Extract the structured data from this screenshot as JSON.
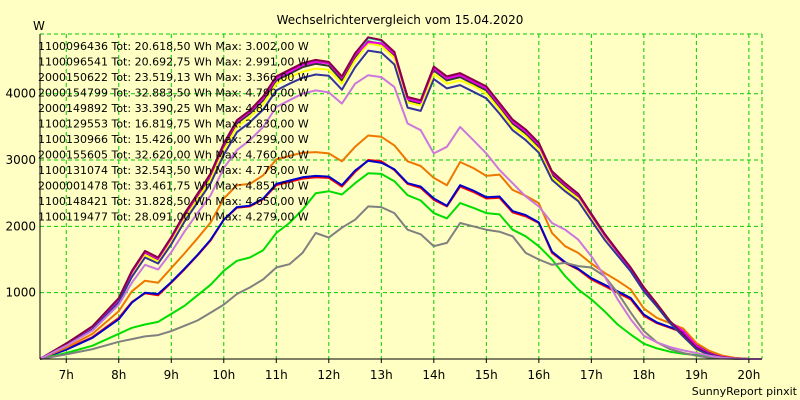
{
  "chart_data": {
    "type": "line",
    "title": "Wechselrichtervergleich vom 15.04.2020",
    "ylabel": "W",
    "footer": "SunnyReport pinxit",
    "ylim": [
      0,
      4900
    ],
    "yticks": [
      1000,
      2000,
      3000,
      4000
    ],
    "xlim": [
      6.5,
      20.25
    ],
    "x_ticks": [
      7,
      8,
      9,
      10,
      11,
      12,
      13,
      14,
      15,
      16,
      17,
      18,
      19,
      20
    ],
    "x_tick_labels": [
      "7h",
      "8h",
      "9h",
      "10h",
      "11h",
      "12h",
      "13h",
      "14h",
      "15h",
      "16h",
      "17h",
      "18h",
      "19h",
      "20h"
    ],
    "grid": true,
    "colors": {
      "background": "#ffffc4",
      "grid": "#00cc00"
    },
    "legend": [
      {
        "text": "1100096436 Tot: 20.618,50 Wh Max: 3.002,00 W",
        "color": "#ff0000"
      },
      {
        "text": "1100096541 Tot: 20.692,75 Wh Max: 2.991,00 W",
        "color": "#0000cc"
      },
      {
        "text": "2000150622 Tot: 23.519,13 Wh Max: 3.366,00 W",
        "color": "#ee7700"
      },
      {
        "text": "2000154799 Tot: 32.883,50 Wh Max: 4.790,00 W",
        "color": "#333333"
      },
      {
        "text": "2000149892 Tot: 33.390,25 Wh Max: 4.840,00 W",
        "color": "#00dddd"
      },
      {
        "text": "1100129553 Tot: 16.819,75 Wh Max: 2.830,00 W",
        "color": "#00dd00"
      },
      {
        "text": "1100130966 Tot: 15.426,00 Wh Max: 2.299,00 W",
        "color": "#808080"
      },
      {
        "text": "2000155605 Tot: 32.620,00 Wh Max: 4.760,00 W",
        "color": "#ffff00"
      },
      {
        "text": "1100131074 Tot: 32.543,50 Wh Max: 4.778,00 W",
        "color": "#ee00ee"
      },
      {
        "text": "2000001478 Tot: 33.461,75 Wh Max: 4.851,00 W",
        "color": "#880044"
      },
      {
        "text": "1100148421 Tot: 31.828,50 Wh Max: 4.650,00 W",
        "color": "#333399"
      },
      {
        "text": "1100119477 Tot: 28.091,00 Wh Max: 4.279,00 W",
        "color": "#cc77dd"
      }
    ],
    "x": [
      6.5,
      7,
      7.5,
      8,
      8.25,
      8.5,
      8.75,
      9,
      9.25,
      9.5,
      9.75,
      10,
      10.25,
      10.5,
      10.75,
      11,
      11.25,
      11.5,
      11.75,
      12,
      12.25,
      12.5,
      12.75,
      13,
      13.25,
      13.5,
      13.75,
      14,
      14.25,
      14.5,
      14.75,
      15,
      15.25,
      15.5,
      15.75,
      16,
      16.25,
      16.5,
      16.75,
      17,
      17.25,
      17.5,
      17.75,
      18,
      18.25,
      18.5,
      18.75,
      19,
      19.25,
      19.5,
      19.75,
      20,
      20.25
    ],
    "series": [
      {
        "name": "1100096436",
        "color": "#ff0000",
        "values": [
          0,
          150,
          330,
          620,
          860,
          990,
          960,
          1150,
          1350,
          1560,
          1790,
          2100,
          2280,
          2300,
          2410,
          2620,
          2670,
          2720,
          2740,
          2730,
          2600,
          2820,
          3000,
          2980,
          2850,
          2640,
          2580,
          2400,
          2300,
          2600,
          2520,
          2420,
          2430,
          2210,
          2150,
          2050,
          1600,
          1450,
          1350,
          1200,
          1100,
          1000,
          900,
          650,
          540,
          470,
          400,
          200,
          100,
          40,
          10,
          0,
          0
        ]
      },
      {
        "name": "1100096541",
        "color": "#0000cc",
        "values": [
          0,
          140,
          320,
          600,
          850,
          1000,
          980,
          1160,
          1360,
          1570,
          1800,
          2100,
          2290,
          2310,
          2420,
          2640,
          2690,
          2740,
          2760,
          2750,
          2620,
          2840,
          2990,
          2960,
          2860,
          2650,
          2600,
          2420,
          2310,
          2620,
          2540,
          2440,
          2450,
          2230,
          2170,
          2060,
          1620,
          1460,
          1360,
          1220,
          1120,
          1020,
          920,
          670,
          550,
          480,
          410,
          210,
          110,
          45,
          12,
          0,
          0
        ]
      },
      {
        "name": "2000150622",
        "color": "#ee7700",
        "values": [
          0,
          170,
          380,
          720,
          1020,
          1180,
          1150,
          1370,
          1590,
          1820,
          2060,
          2420,
          2620,
          2640,
          2770,
          3010,
          3060,
          3110,
          3120,
          3100,
          2980,
          3200,
          3370,
          3350,
          3220,
          2980,
          2910,
          2730,
          2620,
          2970,
          2880,
          2760,
          2780,
          2550,
          2460,
          2350,
          1900,
          1700,
          1600,
          1440,
          1300,
          1180,
          1050,
          760,
          620,
          540,
          460,
          240,
          120,
          50,
          15,
          0,
          0
        ]
      },
      {
        "name": "2000154799",
        "color": "#333333",
        "values": [
          0,
          220,
          480,
          900,
          1300,
          1600,
          1500,
          1800,
          2150,
          2450,
          2750,
          3200,
          3550,
          3700,
          3900,
          4200,
          4300,
          4400,
          4450,
          4420,
          4200,
          4550,
          4790,
          4750,
          4580,
          3900,
          3850,
          4350,
          4200,
          4250,
          4150,
          4050,
          3800,
          3550,
          3400,
          3200,
          2780,
          2600,
          2450,
          2150,
          1850,
          1600,
          1350,
          1050,
          800,
          550,
          350,
          150,
          60,
          20,
          5,
          0,
          0
        ]
      },
      {
        "name": "2000149892",
        "color": "#00dddd",
        "values": [
          0,
          230,
          490,
          910,
          1320,
          1620,
          1520,
          1830,
          2180,
          2480,
          2790,
          3240,
          3590,
          3740,
          3950,
          4250,
          4350,
          4450,
          4500,
          4470,
          4250,
          4600,
          4840,
          4800,
          4620,
          3940,
          3890,
          4400,
          4250,
          4300,
          4200,
          4100,
          3850,
          3600,
          3450,
          3250,
          2820,
          2640,
          2480,
          2180,
          1880,
          1620,
          1370,
          1070,
          820,
          560,
          360,
          160,
          65,
          22,
          6,
          0,
          0
        ]
      },
      {
        "name": "1100129553",
        "color": "#00dd00",
        "values": [
          0,
          90,
          200,
          380,
          470,
          520,
          560,
          680,
          800,
          960,
          1120,
          1330,
          1480,
          1530,
          1640,
          1900,
          2050,
          2250,
          2500,
          2530,
          2480,
          2650,
          2800,
          2790,
          2680,
          2470,
          2390,
          2200,
          2120,
          2350,
          2280,
          2200,
          2180,
          1950,
          1850,
          1700,
          1500,
          1250,
          1050,
          900,
          720,
          520,
          370,
          230,
          160,
          110,
          80,
          60,
          40,
          20,
          8,
          0,
          0
        ]
      },
      {
        "name": "1100130966",
        "color": "#808080",
        "values": [
          0,
          70,
          150,
          260,
          300,
          340,
          360,
          420,
          500,
          580,
          700,
          820,
          980,
          1080,
          1200,
          1380,
          1430,
          1600,
          1900,
          1830,
          1980,
          2100,
          2300,
          2290,
          2200,
          1950,
          1880,
          1700,
          1750,
          2050,
          2000,
          1950,
          1920,
          1850,
          1600,
          1500,
          1420,
          1450,
          1400,
          1380,
          1250,
          1000,
          700,
          420,
          250,
          150,
          90,
          50,
          20,
          8,
          2,
          0,
          0
        ]
      },
      {
        "name": "2000155605",
        "color": "#ffff00",
        "values": [
          0,
          215,
          470,
          880,
          1270,
          1570,
          1470,
          1770,
          2110,
          2410,
          2710,
          3150,
          3500,
          3650,
          3840,
          4150,
          4250,
          4330,
          4380,
          4360,
          4150,
          4500,
          4760,
          4720,
          4540,
          3870,
          3820,
          4300,
          4150,
          4200,
          4120,
          4000,
          3760,
          3500,
          3360,
          3160,
          2740,
          2570,
          2420,
          2120,
          1820,
          1580,
          1330,
          1030,
          790,
          540,
          340,
          140,
          55,
          18,
          4,
          0,
          0
        ]
      },
      {
        "name": "1100131074",
        "color": "#ee00ee",
        "values": [
          0,
          225,
          485,
          905,
          1310,
          1610,
          1510,
          1820,
          2170,
          2470,
          2780,
          3230,
          3580,
          3730,
          3930,
          4230,
          4330,
          4430,
          4480,
          4460,
          4240,
          4580,
          4778,
          4760,
          4600,
          3920,
          3870,
          4380,
          4230,
          4280,
          4180,
          4080,
          3830,
          3580,
          3430,
          3230,
          2810,
          2630,
          2470,
          2170,
          1870,
          1610,
          1360,
          1060,
          810,
          560,
          420,
          200,
          80,
          30,
          8,
          0,
          0
        ]
      },
      {
        "name": "2000001478",
        "color": "#880044",
        "values": [
          0,
          235,
          495,
          920,
          1330,
          1630,
          1530,
          1840,
          2190,
          2490,
          2800,
          3250,
          3600,
          3750,
          3960,
          4260,
          4360,
          4460,
          4510,
          4480,
          4260,
          4610,
          4851,
          4810,
          4630,
          3950,
          3900,
          4410,
          4260,
          4310,
          4210,
          4110,
          3860,
          3610,
          3460,
          3260,
          2830,
          2650,
          2490,
          2190,
          1890,
          1630,
          1380,
          1080,
          830,
          570,
          370,
          170,
          70,
          25,
          6,
          0,
          0
        ]
      },
      {
        "name": "1100148421",
        "color": "#333399",
        "values": [
          0,
          200,
          450,
          860,
          1240,
          1530,
          1440,
          1730,
          2070,
          2360,
          2650,
          3080,
          3420,
          3570,
          3760,
          4050,
          4150,
          4240,
          4290,
          4270,
          4060,
          4400,
          4650,
          4620,
          4440,
          3790,
          3740,
          4220,
          4080,
          4130,
          4030,
          3930,
          3700,
          3450,
          3300,
          3110,
          2700,
          2530,
          2380,
          2090,
          1800,
          1560,
          1320,
          1020,
          790,
          540,
          340,
          150,
          60,
          20,
          5,
          0,
          0
        ]
      },
      {
        "name": "1100119477",
        "color": "#cc77dd",
        "values": [
          0,
          200,
          430,
          820,
          1150,
          1420,
          1350,
          1610,
          1920,
          2200,
          2470,
          2880,
          3150,
          3300,
          3500,
          3800,
          3900,
          4000,
          4050,
          4020,
          3850,
          4150,
          4279,
          4250,
          4100,
          3550,
          3450,
          3100,
          3200,
          3500,
          3300,
          3100,
          2850,
          2650,
          2450,
          2300,
          2050,
          1950,
          1800,
          1550,
          1250,
          900,
          600,
          350,
          250,
          180,
          130,
          90,
          50,
          20,
          5,
          0,
          0
        ]
      }
    ]
  }
}
